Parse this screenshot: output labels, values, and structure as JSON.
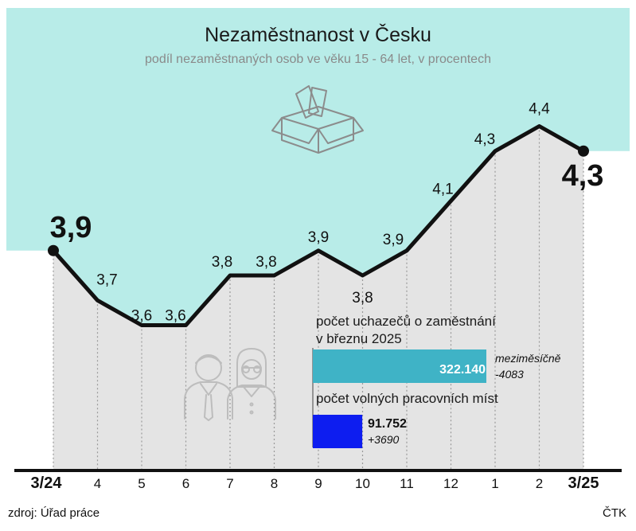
{
  "header": {
    "title": "Nezaměstnanost v Česku",
    "subtitle": "podíl nezaměstnaných osob ve věku 15 - 64 let, v procentech"
  },
  "chart_data": {
    "type": "line",
    "title": "Nezaměstnanost v Česku",
    "subtitle": "podíl nezaměstnaných osob ve věku 15 - 64 let, v procentech",
    "categories": [
      "3/24",
      "4",
      "5",
      "6",
      "7",
      "8",
      "9",
      "10",
      "11",
      "12",
      "1",
      "2",
      "3/25"
    ],
    "values": [
      3.9,
      3.7,
      3.6,
      3.6,
      3.8,
      3.8,
      3.9,
      3.8,
      3.9,
      4.1,
      4.3,
      4.4,
      4.3
    ],
    "value_labels": [
      "3,9",
      "3,7",
      "3,6",
      "3,6",
      "3,8",
      "3,8",
      "3,9",
      "3,8",
      "3,9",
      "4,1",
      "4,3",
      "4,4",
      "4,3"
    ],
    "ylim": [
      3.0,
      4.7
    ],
    "grid": "vertical dotted",
    "colors": {
      "line": "#111111",
      "top_area": "#b8ece8",
      "under_area": "#e4e4e4",
      "grid": "#9a9a9a"
    }
  },
  "inset": {
    "applicants_label_line1": "počet uchazečů o zaměstnání",
    "applicants_label_line2": "v březnu 2025",
    "applicants_value": 322140,
    "applicants_value_text": "322.140",
    "applicants_change_label": "meziměsíčně",
    "applicants_change": "-4083",
    "vacancies_label": "počet volných pracovních míst",
    "vacancies_value": 91752,
    "vacancies_value_text": "91.752",
    "vacancies_change": "+3690",
    "colors": {
      "applicants": "#3fb3c6",
      "vacancies": "#0d1df0"
    }
  },
  "decor": {
    "box_icon": "box-icon",
    "people_icon": "people-icon"
  },
  "footer": {
    "source": "zdroj: Úřad práce",
    "credit": "ČTK"
  }
}
